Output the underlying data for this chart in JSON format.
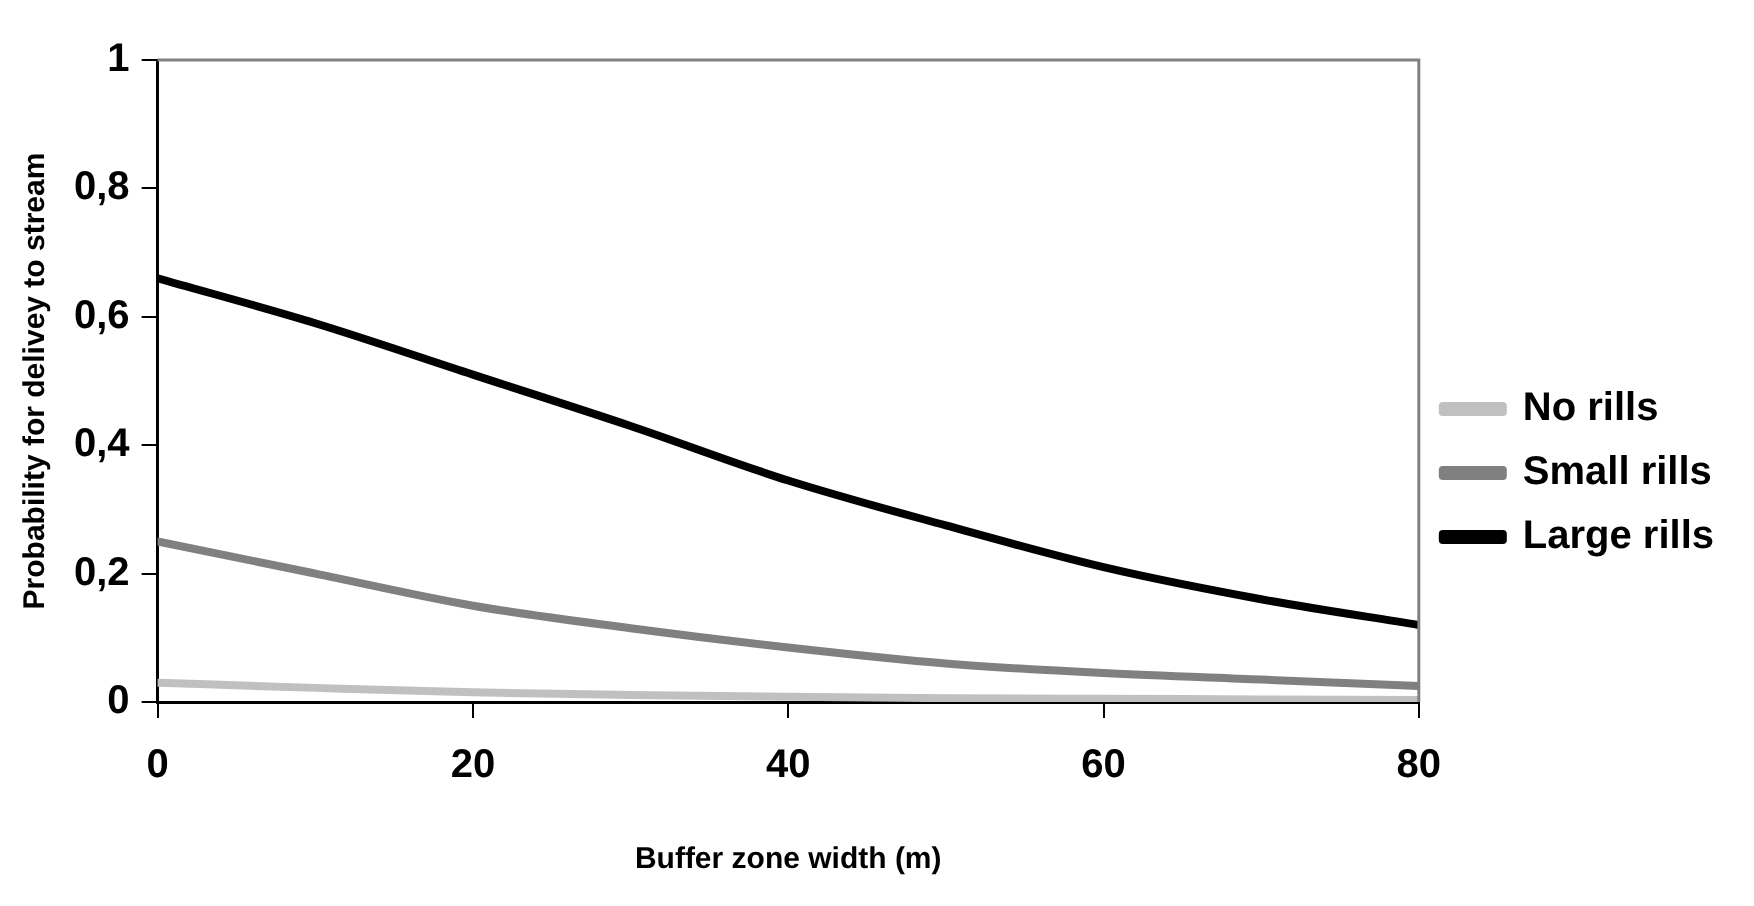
{
  "chart_data": {
    "type": "line",
    "xlabel": "Buffer zone width (m)",
    "ylabel": "Probability for delivey to stream",
    "x": [
      0,
      10,
      20,
      30,
      40,
      50,
      60,
      70,
      80
    ],
    "series": [
      {
        "name": "No rills",
        "color": "#c0c0c0",
        "values": [
          0.03,
          0.022,
          0.015,
          0.011,
          0.008,
          0.006,
          0.005,
          0.004,
          0.003
        ]
      },
      {
        "name": "Small rills",
        "color": "#808080",
        "values": [
          0.25,
          0.2,
          0.15,
          0.115,
          0.085,
          0.06,
          0.045,
          0.035,
          0.025
        ]
      },
      {
        "name": "Large rills",
        "color": "#000000",
        "values": [
          0.66,
          0.59,
          0.51,
          0.43,
          0.345,
          0.275,
          0.21,
          0.16,
          0.12
        ]
      }
    ],
    "xlim": [
      0,
      80
    ],
    "xticks": [
      0,
      20,
      40,
      60,
      80
    ],
    "ylim": [
      0,
      1
    ],
    "yticks": [
      0,
      {
        "value": 0.2,
        "label": "0,2"
      },
      {
        "value": 0.4,
        "label": "0,4"
      },
      {
        "value": 0.6,
        "label": "0,6"
      },
      {
        "value": 0.8,
        "label": "0,8"
      },
      1
    ],
    "grid": false,
    "legend": "right",
    "marker": "none",
    "line_style": "solid"
  }
}
